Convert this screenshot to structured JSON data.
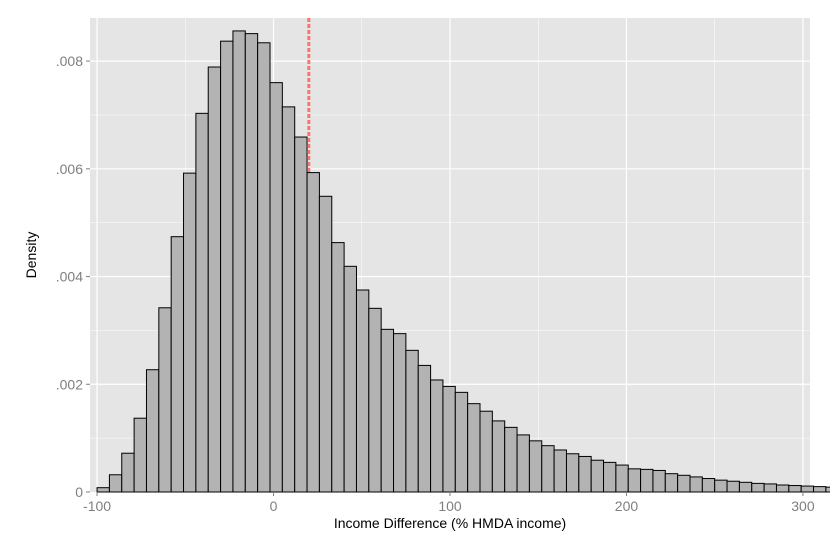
{
  "chart_data": {
    "type": "bar",
    "subtype": "histogram",
    "xlabel": "Income Difference (% HMDA income)",
    "ylabel": "Density",
    "xlim": [
      -104,
      304
    ],
    "ylim": [
      0,
      0.0088
    ],
    "xticks": [
      -100,
      0,
      100,
      200,
      300
    ],
    "xtick_labels": [
      "-100",
      "0",
      "100",
      "200",
      "300"
    ],
    "yticks": [
      0,
      0.002,
      0.004,
      0.006,
      0.008
    ],
    "ytick_labels": [
      "0",
      ".002",
      ".004",
      ".006",
      ".008"
    ],
    "grid": true,
    "bin_start": -100,
    "bin_width": 7,
    "values": [
      8e-05,
      0.00032,
      0.00072,
      0.00137,
      0.00227,
      0.00342,
      0.00474,
      0.00592,
      0.00703,
      0.00789,
      0.00837,
      0.00856,
      0.00851,
      0.00834,
      0.0076,
      0.00715,
      0.00659,
      0.00593,
      0.00549,
      0.00463,
      0.00419,
      0.00375,
      0.00341,
      0.00302,
      0.00294,
      0.00263,
      0.00235,
      0.00208,
      0.00196,
      0.00185,
      0.00164,
      0.0015,
      0.00132,
      0.0012,
      0.00106,
      0.00095,
      0.00086,
      0.00078,
      0.00071,
      0.00066,
      0.00059,
      0.00055,
      0.0005,
      0.00043,
      0.00042,
      0.0004,
      0.00034,
      0.00031,
      0.00028,
      0.00025,
      0.00022,
      0.0002,
      0.00018,
      0.00016,
      0.00015,
      0.00013,
      0.00012,
      0.00011,
      0.0001,
      9e-05
    ],
    "reference_line": {
      "x": 20,
      "color": "#f8766d",
      "style": "dashed"
    },
    "colors": {
      "panel_background": "#e5e5e5",
      "grid": "#ffffff",
      "bar_fill": "#b3b3b3",
      "bar_stroke": "#000000"
    }
  }
}
